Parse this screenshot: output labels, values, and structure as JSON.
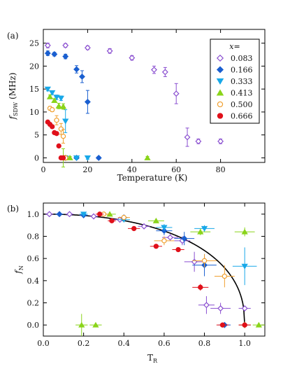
{
  "series_style": [
    {
      "color": "#8a4fd0",
      "marker": "diamond-open"
    },
    {
      "color": "#1a5fd0",
      "marker": "diamond"
    },
    {
      "color": "#18a8e8",
      "marker": "triangle-down"
    },
    {
      "color": "#8ad41a",
      "marker": "triangle-up"
    },
    {
      "color": "#f0a030",
      "marker": "circle-open"
    },
    {
      "color": "#e0101a",
      "marker": "circle"
    }
  ],
  "chart_data": [
    {
      "panel_label": "(a)",
      "type": "scatter",
      "xlabel": "Temperature (K)",
      "ylabel": "f_SDW (MHz)",
      "xlim": [
        0,
        100
      ],
      "ylim": [
        -1,
        28
      ],
      "xticks": [
        "0",
        "20",
        "40",
        "60",
        "80"
      ],
      "yticks": [
        "0",
        "5",
        "10",
        "15",
        "20",
        "25"
      ],
      "legend": {
        "title": "x=",
        "position": "top-right",
        "entries": [
          "0.083",
          "0.166",
          "0.333",
          "0.413",
          "0.500",
          "0.666"
        ]
      },
      "series": [
        {
          "name": "0.083",
          "points": [
            [
              2,
              24.5,
              0.5
            ],
            [
              10,
              24.5,
              0.4
            ],
            [
              20,
              24,
              0.4
            ],
            [
              30,
              23.3,
              0.5
            ],
            [
              40,
              21.8,
              0.5
            ],
            [
              50,
              19.2,
              0.8
            ],
            [
              55,
              18.7,
              1.0
            ],
            [
              60,
              14,
              2.2
            ],
            [
              65,
              4.5,
              2.0
            ],
            [
              70,
              3.6,
              0.5
            ],
            [
              80,
              3.6,
              0.5
            ]
          ]
        },
        {
          "name": "0.166",
          "points": [
            [
              2,
              22.8,
              0.5
            ],
            [
              5,
              22.6,
              0.4
            ],
            [
              10,
              22.1,
              0.5
            ],
            [
              15,
              19.3,
              0.8
            ],
            [
              17.5,
              17.7,
              1.3
            ],
            [
              20,
              12.2,
              2.5
            ],
            [
              10,
              0,
              0.3
            ],
            [
              15,
              0,
              0.3
            ],
            [
              25,
              0,
              0.3
            ]
          ]
        },
        {
          "name": "0.333",
          "points": [
            [
              2,
              15,
              0.4
            ],
            [
              4,
              14.2,
              0.4
            ],
            [
              6,
              13.2,
              0.5
            ],
            [
              8,
              13,
              0.5
            ],
            [
              10,
              8,
              2.5
            ],
            [
              10,
              0,
              0.3
            ],
            [
              15,
              0,
              0.3
            ],
            [
              20,
              0,
              0.3
            ]
          ]
        },
        {
          "name": "0.413",
          "points": [
            [
              3,
              13.3,
              0.4
            ],
            [
              5,
              12.5,
              0.4
            ],
            [
              7,
              11.3,
              0.6
            ],
            [
              9,
              11.2,
              0.6
            ],
            [
              9,
              0,
              2.0
            ],
            [
              12,
              0,
              0.3
            ],
            [
              47,
              0,
              0.3
            ]
          ]
        },
        {
          "name": "0.500",
          "points": [
            [
              3,
              10.8,
              0.4
            ],
            [
              4,
              10.5,
              0.4
            ],
            [
              6,
              8.2,
              1.0
            ],
            [
              8,
              6.3,
              1.2
            ],
            [
              9,
              4.7,
              1.5
            ],
            [
              10,
              0,
              0.5
            ]
          ]
        },
        {
          "name": "0.666",
          "points": [
            [
              2,
              7.8,
              0.2
            ],
            [
              3,
              7.3,
              0.2
            ],
            [
              4,
              6.8,
              0.2
            ],
            [
              5,
              5.5,
              0.3
            ],
            [
              6,
              5.3,
              0.3
            ],
            [
              7,
              2.6,
              0.3
            ],
            [
              8,
              0,
              0.2
            ],
            [
              9,
              0,
              0.2
            ]
          ]
        }
      ]
    },
    {
      "panel_label": "(b)",
      "type": "scatter",
      "xlabel": "T_R",
      "ylabel": "f_N",
      "xlim": [
        0,
        1.1
      ],
      "ylim": [
        -0.1,
        1.1
      ],
      "xticks": [
        "0.0",
        "0.2",
        "0.4",
        "0.6",
        "0.8",
        "1.0"
      ],
      "yticks": [
        "0.0",
        "0.2",
        "0.4",
        "0.6",
        "0.8",
        "1.0"
      ],
      "series": [
        {
          "name": "0.083",
          "points": [
            [
              0.03,
              1.0,
              0.02,
              0.01
            ],
            [
              0.13,
              1.0,
              0.02,
              0.01
            ],
            [
              0.25,
              0.98,
              0.02,
              0.01
            ],
            [
              0.38,
              0.95,
              0.03,
              0.02
            ],
            [
              0.5,
              0.89,
              0.03,
              0.02
            ],
            [
              0.63,
              0.79,
              0.04,
              0.03
            ],
            [
              0.69,
              0.76,
              0.04,
              0.04
            ],
            [
              0.75,
              0.57,
              0.05,
              0.09
            ],
            [
              0.81,
              0.18,
              0.04,
              0.08
            ],
            [
              0.88,
              0.15,
              0.05,
              0.05
            ],
            [
              1.0,
              0.15,
              0.03,
              0.02
            ]
          ]
        },
        {
          "name": "0.166",
          "points": [
            [
              0.08,
              1.0,
              0.02,
              0.01
            ],
            [
              0.2,
              0.99,
              0.02,
              0.01
            ],
            [
              0.4,
              0.97,
              0.02,
              0.02
            ],
            [
              0.6,
              0.85,
              0.04,
              0.04
            ],
            [
              0.7,
              0.78,
              0.05,
              0.06
            ],
            [
              0.8,
              0.54,
              0.06,
              0.1
            ],
            [
              0.9,
              0.0,
              0.03,
              0.02
            ],
            [
              1.0,
              0.0,
              0.03,
              0.02
            ]
          ]
        },
        {
          "name": "0.333",
          "points": [
            [
              0.2,
              1.0,
              0.02,
              0.01
            ],
            [
              0.4,
              0.95,
              0.03,
              0.02
            ],
            [
              0.6,
              0.88,
              0.04,
              0.03
            ],
            [
              0.8,
              0.87,
              0.05,
              0.03
            ],
            [
              1.0,
              0.53,
              0.06,
              0.17
            ]
          ]
        },
        {
          "name": "0.413",
          "points": [
            [
              0.33,
              1.0,
              0.03,
              0.01
            ],
            [
              0.56,
              0.94,
              0.04,
              0.02
            ],
            [
              0.78,
              0.84,
              0.05,
              0.03
            ],
            [
              1.0,
              0.84,
              0.05,
              0.04
            ],
            [
              0.19,
              0.0,
              0.03,
              0.1
            ],
            [
              0.26,
              0.0,
              0.03,
              0.02
            ],
            [
              1.07,
              0.0,
              0.03,
              0.02
            ]
          ]
        },
        {
          "name": "0.500",
          "points": [
            [
              0.3,
              1.0,
              0.03,
              0.01
            ],
            [
              0.4,
              0.97,
              0.03,
              0.02
            ],
            [
              0.6,
              0.76,
              0.05,
              0.04
            ],
            [
              0.8,
              0.58,
              0.06,
              0.06
            ],
            [
              0.9,
              0.44,
              0.05,
              0.1
            ],
            [
              1.0,
              0.0,
              0.03,
              0.03
            ]
          ]
        },
        {
          "name": "0.666",
          "points": [
            [
              0.28,
              1.0,
              0.02,
              0.01
            ],
            [
              0.34,
              0.94,
              0.02,
              0.01
            ],
            [
              0.45,
              0.87,
              0.03,
              0.01
            ],
            [
              0.56,
              0.71,
              0.03,
              0.02
            ],
            [
              0.67,
              0.68,
              0.03,
              0.02
            ],
            [
              0.78,
              0.34,
              0.04,
              0.03
            ],
            [
              0.89,
              0.0,
              0.03,
              0.02
            ],
            [
              1.0,
              0.0,
              0.03,
              0.02
            ]
          ]
        }
      ],
      "curve": {
        "shape": "order-parameter",
        "color": "#000000"
      }
    }
  ]
}
